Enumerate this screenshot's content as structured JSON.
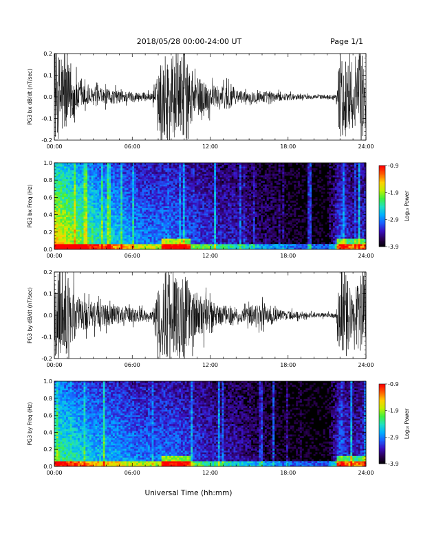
{
  "header": {
    "title": "2018/05/28  00:00-24:00 UT",
    "page": "Page 1/1"
  },
  "xaxis_label": "Universal Time (hh:mm)",
  "colors": {
    "trace": "#000000",
    "colormap": [
      "#000000",
      "#2a0050",
      "#3a10c0",
      "#1a60ff",
      "#00b0ff",
      "#20e0c0",
      "#40f040",
      "#c0f000",
      "#ffd000",
      "#ff6000",
      "#ff0000"
    ]
  },
  "chart_data": [
    {
      "type": "line",
      "name": "panel-1",
      "title": "",
      "ylabel": "PG3 bx dB/dt (nT/sec)",
      "xlabel": "",
      "xlim": [
        0,
        24
      ],
      "ylim": [
        -0.2,
        0.2
      ],
      "xticks": [
        "00:00",
        "06:00",
        "12:00",
        "18:00",
        "24:00"
      ],
      "yticks": [
        "-0.2",
        "-0.1",
        "0.0",
        "0.1",
        "0.2"
      ],
      "envelope": {
        "x": [
          0,
          0.5,
          1.0,
          1.5,
          2.0,
          3.0,
          4.0,
          5.0,
          6.0,
          7.0,
          7.5,
          7.8,
          8.2,
          8.5,
          9.0,
          9.5,
          10.0,
          10.5,
          11.0,
          11.5,
          12.0,
          12.5,
          13.0,
          13.5,
          14.0,
          15.0,
          16.0,
          17.0,
          18.0,
          19.0,
          20.0,
          21.0,
          21.7,
          22.0,
          22.5,
          23.0,
          23.5,
          24.0
        ],
        "amp": [
          0.2,
          0.2,
          0.16,
          0.09,
          0.06,
          0.04,
          0.035,
          0.03,
          0.025,
          0.02,
          0.015,
          0.06,
          0.16,
          0.2,
          0.2,
          0.16,
          0.2,
          0.1,
          0.09,
          0.08,
          0.06,
          0.05,
          0.05,
          0.07,
          0.03,
          0.025,
          0.03,
          0.02,
          0.015,
          0.012,
          0.01,
          0.01,
          0.01,
          0.2,
          0.2,
          0.08,
          0.2,
          0.2
        ]
      }
    },
    {
      "type": "heatmap",
      "name": "panel-2",
      "title": "",
      "ylabel": "PG3 bx Freq (Hz)",
      "xlabel": "",
      "xlim": [
        0,
        24
      ],
      "ylim": [
        0.0,
        1.0
      ],
      "xticks": [
        "00:00",
        "06:00",
        "12:00",
        "18:00",
        "24:00"
      ],
      "yticks": [
        "0.0",
        "0.2",
        "0.4",
        "0.6",
        "0.8",
        "1.0"
      ],
      "colorbar": {
        "label": "Log₁₀ Power",
        "range": [
          -3.9,
          -0.9
        ],
        "ticks": [
          "-0.9",
          "-1.9",
          "-2.9",
          "-3.9"
        ]
      },
      "activity": {
        "x": [
          0,
          1,
          2,
          3,
          4,
          5,
          6,
          7,
          8,
          9,
          10,
          11,
          12,
          13,
          14,
          15,
          16,
          17,
          18,
          19,
          20,
          21,
          22,
          23,
          24
        ],
        "level": [
          0.85,
          0.75,
          0.65,
          0.55,
          0.5,
          0.45,
          0.4,
          0.35,
          0.35,
          0.35,
          0.3,
          0.28,
          0.25,
          0.22,
          0.2,
          0.16,
          0.12,
          0.1,
          0.06,
          0.04,
          0.03,
          0.02,
          0.3,
          0.2,
          0.25
        ]
      }
    },
    {
      "type": "line",
      "name": "panel-3",
      "title": "",
      "ylabel": "PG3 by dB/dt (nT/sec)",
      "xlabel": "",
      "xlim": [
        0,
        24
      ],
      "ylim": [
        -0.2,
        0.2
      ],
      "xticks": [
        "00:00",
        "06:00",
        "12:00",
        "18:00",
        "24:00"
      ],
      "yticks": [
        "-0.2",
        "-0.1",
        "0.0",
        "0.1",
        "0.2"
      ],
      "envelope": {
        "x": [
          0,
          0.5,
          1.0,
          1.5,
          2.0,
          3.0,
          4.0,
          5.0,
          6.0,
          7.0,
          7.5,
          7.8,
          8.2,
          8.5,
          9.0,
          9.5,
          10.0,
          10.5,
          11.0,
          11.5,
          12.0,
          12.5,
          13.0,
          13.5,
          14.0,
          15.0,
          16.0,
          17.0,
          18.0,
          19.0,
          20.0,
          21.0,
          21.7,
          22.0,
          22.5,
          23.0,
          23.5,
          24.0
        ],
        "amp": [
          0.2,
          0.2,
          0.18,
          0.12,
          0.08,
          0.06,
          0.05,
          0.04,
          0.035,
          0.025,
          0.02,
          0.06,
          0.2,
          0.2,
          0.2,
          0.2,
          0.2,
          0.12,
          0.1,
          0.09,
          0.07,
          0.05,
          0.045,
          0.04,
          0.03,
          0.04,
          0.05,
          0.03,
          0.02,
          0.015,
          0.01,
          0.01,
          0.01,
          0.2,
          0.2,
          0.07,
          0.2,
          0.2
        ]
      }
    },
    {
      "type": "heatmap",
      "name": "panel-4",
      "title": "",
      "ylabel": "PG3 by Freq (Hz)",
      "xlabel": "",
      "xlim": [
        0,
        24
      ],
      "ylim": [
        0.0,
        1.0
      ],
      "xticks": [
        "00:00",
        "06:00",
        "12:00",
        "18:00",
        "24:00"
      ],
      "yticks": [
        "0.0",
        "0.2",
        "0.4",
        "0.6",
        "0.8",
        "1.0"
      ],
      "colorbar": {
        "label": "Log₁₀ Power",
        "range": [
          -3.9,
          -0.9
        ],
        "ticks": [
          "-0.9",
          "-1.9",
          "-2.9",
          "-3.9"
        ]
      },
      "activity": {
        "x": [
          0,
          1,
          2,
          3,
          4,
          5,
          6,
          7,
          8,
          9,
          10,
          11,
          12,
          13,
          14,
          15,
          16,
          17,
          18,
          19,
          20,
          21,
          22,
          23,
          24
        ],
        "level": [
          0.6,
          0.55,
          0.5,
          0.45,
          0.42,
          0.4,
          0.36,
          0.33,
          0.33,
          0.33,
          0.3,
          0.26,
          0.22,
          0.2,
          0.18,
          0.14,
          0.1,
          0.08,
          0.05,
          0.03,
          0.02,
          0.02,
          0.3,
          0.2,
          0.25
        ]
      }
    }
  ]
}
